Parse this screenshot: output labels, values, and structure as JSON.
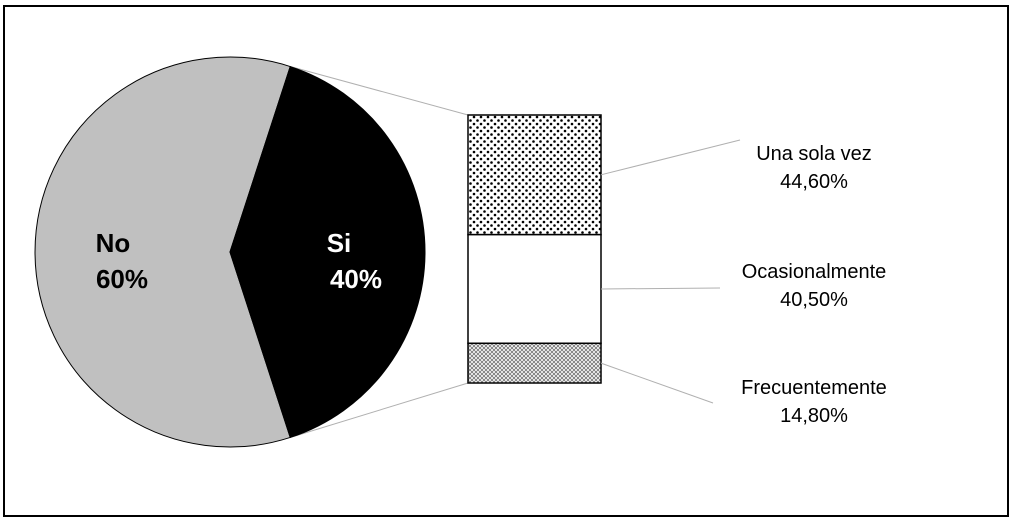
{
  "chart_data": [
    {
      "type": "pie",
      "slices": [
        {
          "name": "No",
          "value": 60,
          "value_label": "60%",
          "color": "#c0c0c0",
          "label_color": "#000000"
        },
        {
          "name": "Si",
          "value": 40,
          "value_label": "40%",
          "color": "#000000",
          "label_color": "#ffffff"
        }
      ],
      "exploded_slice": "Si"
    },
    {
      "type": "bar",
      "stacked": true,
      "parent_slice": "Si",
      "segments": [
        {
          "name": "Una sola vez",
          "value": 44.6,
          "value_label": "44,60%",
          "fill": "dots"
        },
        {
          "name": "Ocasionalmente",
          "value": 40.5,
          "value_label": "40,50%",
          "fill": "#ffffff"
        },
        {
          "name": "Frecuentemente",
          "value": 14.8,
          "value_label": "14,80%",
          "fill": "crosshatch"
        }
      ]
    }
  ]
}
